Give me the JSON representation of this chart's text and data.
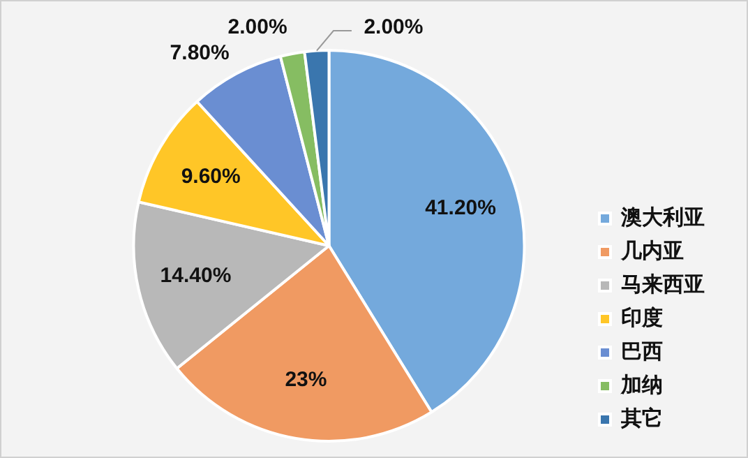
{
  "chart_data": {
    "type": "pie",
    "categories": [
      "澳大利亚",
      "几内亚",
      "马来西亚",
      "印度",
      "巴西",
      "加纳",
      "其它"
    ],
    "values": [
      41.2,
      23,
      14.4,
      9.6,
      7.8,
      2,
      2
    ],
    "value_labels": [
      "41.20%",
      "23%",
      "14.40%",
      "9.60%",
      "7.80%",
      "2.00%",
      "2.00%"
    ],
    "colors": [
      "#74a9dc",
      "#f09a62",
      "#b8b8b8",
      "#ffc627",
      "#6a8ed2",
      "#86bd62",
      "#3a76ae"
    ],
    "legend": "right"
  }
}
